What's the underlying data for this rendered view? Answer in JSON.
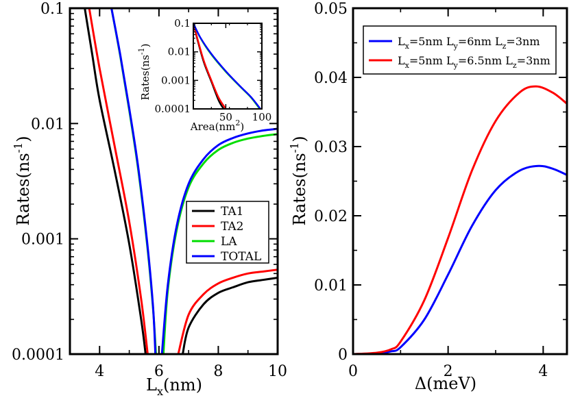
{
  "chart_data": [
    {
      "id": "left",
      "type": "line",
      "yscale": "log",
      "xlabel": "L_x(nm)",
      "ylabel": "Rates(ns^-1)",
      "xlim": [
        3,
        10
      ],
      "ylim": [
        0.0001,
        0.1
      ],
      "x_ticks": [
        4,
        6,
        8,
        10
      ],
      "x_tick_labels": [
        "4",
        "6",
        "8",
        "10"
      ],
      "y_ticks": [
        0.0001,
        0.001,
        0.01,
        0.1
      ],
      "y_tick_labels": [
        "0.0001",
        "0.001",
        "0.01",
        "0.1"
      ],
      "legend_position": "lower-right",
      "series": [
        {
          "name": "TA1",
          "color": "#000000",
          "x": [
            3.5,
            3.75,
            4.0,
            4.5,
            5.0,
            5.4,
            5.55,
            6.8,
            7.0,
            7.5,
            8.0,
            8.5,
            9.0,
            9.5,
            10.0
          ],
          "y": [
            0.1,
            0.04,
            0.016,
            0.004,
            0.0009,
            0.0002,
            0.0001,
            0.0001,
            0.00017,
            0.00027,
            0.00034,
            0.00038,
            0.00042,
            0.00044,
            0.00046
          ]
        },
        {
          "name": "TA2",
          "color": "#ff0000",
          "x": [
            3.65,
            4.0,
            4.5,
            5.0,
            5.4,
            5.62,
            6.65,
            7.0,
            7.5,
            8.0,
            8.5,
            9.0,
            9.5,
            10.0
          ],
          "y": [
            0.1,
            0.03,
            0.0065,
            0.0014,
            0.0003,
            0.0001,
            0.0001,
            0.00022,
            0.00033,
            0.00041,
            0.00046,
            0.0005,
            0.00052,
            0.00054
          ]
        },
        {
          "name": "LA",
          "color": "#00dd00",
          "x": [
            4.4,
            4.7,
            5.0,
            5.3,
            5.6,
            5.8,
            5.9,
            6.15,
            6.3,
            6.6,
            7.0,
            7.5,
            8.0,
            8.5,
            9.0,
            9.5,
            10.0
          ],
          "y": [
            0.1,
            0.038,
            0.013,
            0.004,
            0.0009,
            0.00025,
            0.0001,
            0.0001,
            0.00036,
            0.0012,
            0.0028,
            0.0045,
            0.0059,
            0.0068,
            0.0074,
            0.0078,
            0.0081
          ]
        },
        {
          "name": "TOTAL",
          "color": "#0000ff",
          "x": [
            4.4,
            4.7,
            5.0,
            5.3,
            5.6,
            5.8,
            5.88,
            6.1,
            6.3,
            6.6,
            7.0,
            7.5,
            8.0,
            8.5,
            9.0,
            9.5,
            10.0
          ],
          "y": [
            0.1,
            0.039,
            0.0135,
            0.0042,
            0.00095,
            0.00026,
            0.0001,
            0.0001,
            0.0004,
            0.0013,
            0.003,
            0.0049,
            0.0065,
            0.0075,
            0.0082,
            0.0087,
            0.009
          ]
        }
      ]
    },
    {
      "id": "inset",
      "type": "line",
      "yscale": "log",
      "xlabel": "Area(nm^2)",
      "ylabel": "Rates(ns^-1)",
      "xlim": [
        5,
        100
      ],
      "ylim": [
        0.0001,
        0.1
      ],
      "x_ticks": [
        50,
        100
      ],
      "x_tick_labels": [
        "50",
        "100"
      ],
      "y_ticks": [
        0.0001,
        0.001,
        0.01,
        0.1
      ],
      "y_tick_labels": [
        "0.0001",
        "0.001",
        "0.01",
        "0.1"
      ],
      "series": [
        {
          "name": "TA1",
          "color": "#000000",
          "x": [
            5,
            12,
            20,
            30,
            40,
            47
          ],
          "y": [
            0.1,
            0.02,
            0.004,
            0.0009,
            0.0002,
            0.0001
          ]
        },
        {
          "name": "TA2",
          "color": "#ff0000",
          "x": [
            5,
            12,
            20,
            30,
            40,
            50
          ],
          "y": [
            0.1,
            0.022,
            0.0045,
            0.001,
            0.00025,
            0.0001
          ]
        },
        {
          "name": "LA",
          "color": "#00dd00",
          "x": [
            5,
            15,
            30,
            50,
            70,
            85,
            97
          ],
          "y": [
            0.1,
            0.03,
            0.008,
            0.002,
            0.0006,
            0.00025,
            0.0001
          ]
        },
        {
          "name": "TOTAL",
          "color": "#0000ff",
          "x": [
            5,
            15,
            30,
            50,
            70,
            85,
            98
          ],
          "y": [
            0.1,
            0.031,
            0.0085,
            0.0021,
            0.00062,
            0.00026,
            0.0001
          ]
        }
      ]
    },
    {
      "id": "right",
      "type": "line",
      "yscale": "linear",
      "xlabel": "Δ(meV)",
      "ylabel": "Rates(ns^-1)",
      "xlim": [
        0,
        4.5
      ],
      "ylim": [
        0,
        0.05
      ],
      "x_ticks": [
        0,
        2,
        4
      ],
      "x_tick_labels": [
        "0",
        "2",
        "4"
      ],
      "y_ticks": [
        0,
        0.01,
        0.02,
        0.03,
        0.04,
        0.05
      ],
      "y_tick_labels": [
        "0",
        "0.01",
        "0.02",
        "0.03",
        "0.04",
        "0.05"
      ],
      "legend_position": "top",
      "series": [
        {
          "name": "L_x=5nm L_y=6nm L_z=3nm",
          "color": "#0000ff",
          "x": [
            0,
            0.5,
            0.8,
            1.0,
            1.5,
            2.0,
            2.5,
            3.0,
            3.5,
            3.9,
            4.2,
            4.5
          ],
          "y": [
            0,
            0.0001,
            0.0004,
            0.001,
            0.005,
            0.0115,
            0.0185,
            0.0237,
            0.0265,
            0.0272,
            0.0268,
            0.0259
          ]
        },
        {
          "name": "L_x=5nm L_y=6.5nm L_z=3nm",
          "color": "#ff0000",
          "x": [
            0,
            0.5,
            0.8,
            1.0,
            1.5,
            2.0,
            2.5,
            3.0,
            3.5,
            3.85,
            4.2,
            4.5
          ],
          "y": [
            0,
            0.0002,
            0.0007,
            0.0018,
            0.0078,
            0.0168,
            0.0265,
            0.0337,
            0.0378,
            0.0387,
            0.0378,
            0.0362
          ]
        }
      ]
    }
  ],
  "legend_left": [
    {
      "label": "TA1",
      "color": "#000000"
    },
    {
      "label": "TA2",
      "color": "#ff0000"
    },
    {
      "label": "LA",
      "color": "#00dd00"
    },
    {
      "label": "TOTAL",
      "color": "#0000ff"
    }
  ],
  "legend_right": [
    {
      "L": "L",
      "xsub": "x",
      "eq1": "=5nm ",
      "L2": "L",
      "ysub": "y",
      "eq2": "=6nm ",
      "L3": "L",
      "zsub": "z",
      "eq3": "=3nm",
      "color": "#0000ff"
    },
    {
      "L": "L",
      "xsub": "x",
      "eq1": "=5nm ",
      "L2": "L",
      "ysub": "y",
      "eq2": "=6.5nm ",
      "L3": "L",
      "zsub": "z",
      "eq3": "=3nm",
      "color": "#ff0000"
    }
  ],
  "labels": {
    "left_xlabel_main": "L",
    "left_xlabel_sub": "x",
    "left_xlabel_unit": "(nm)",
    "ylabel_main": "Rates(ns",
    "ylabel_sup": "-1",
    "ylabel_close": ")",
    "inset_ylabel_main": "Rates(ns",
    "inset_ylabel_sup": "-1",
    "inset_ylabel_close": ")",
    "inset_xlabel_main": "Area(nm",
    "inset_xlabel_sup": "2",
    "inset_xlabel_close": ")",
    "right_xlabel": "Δ(meV)",
    "right_ylabel_main": "Rates(ns",
    "right_ylabel_sup": "-1",
    "right_ylabel_close": ")"
  }
}
